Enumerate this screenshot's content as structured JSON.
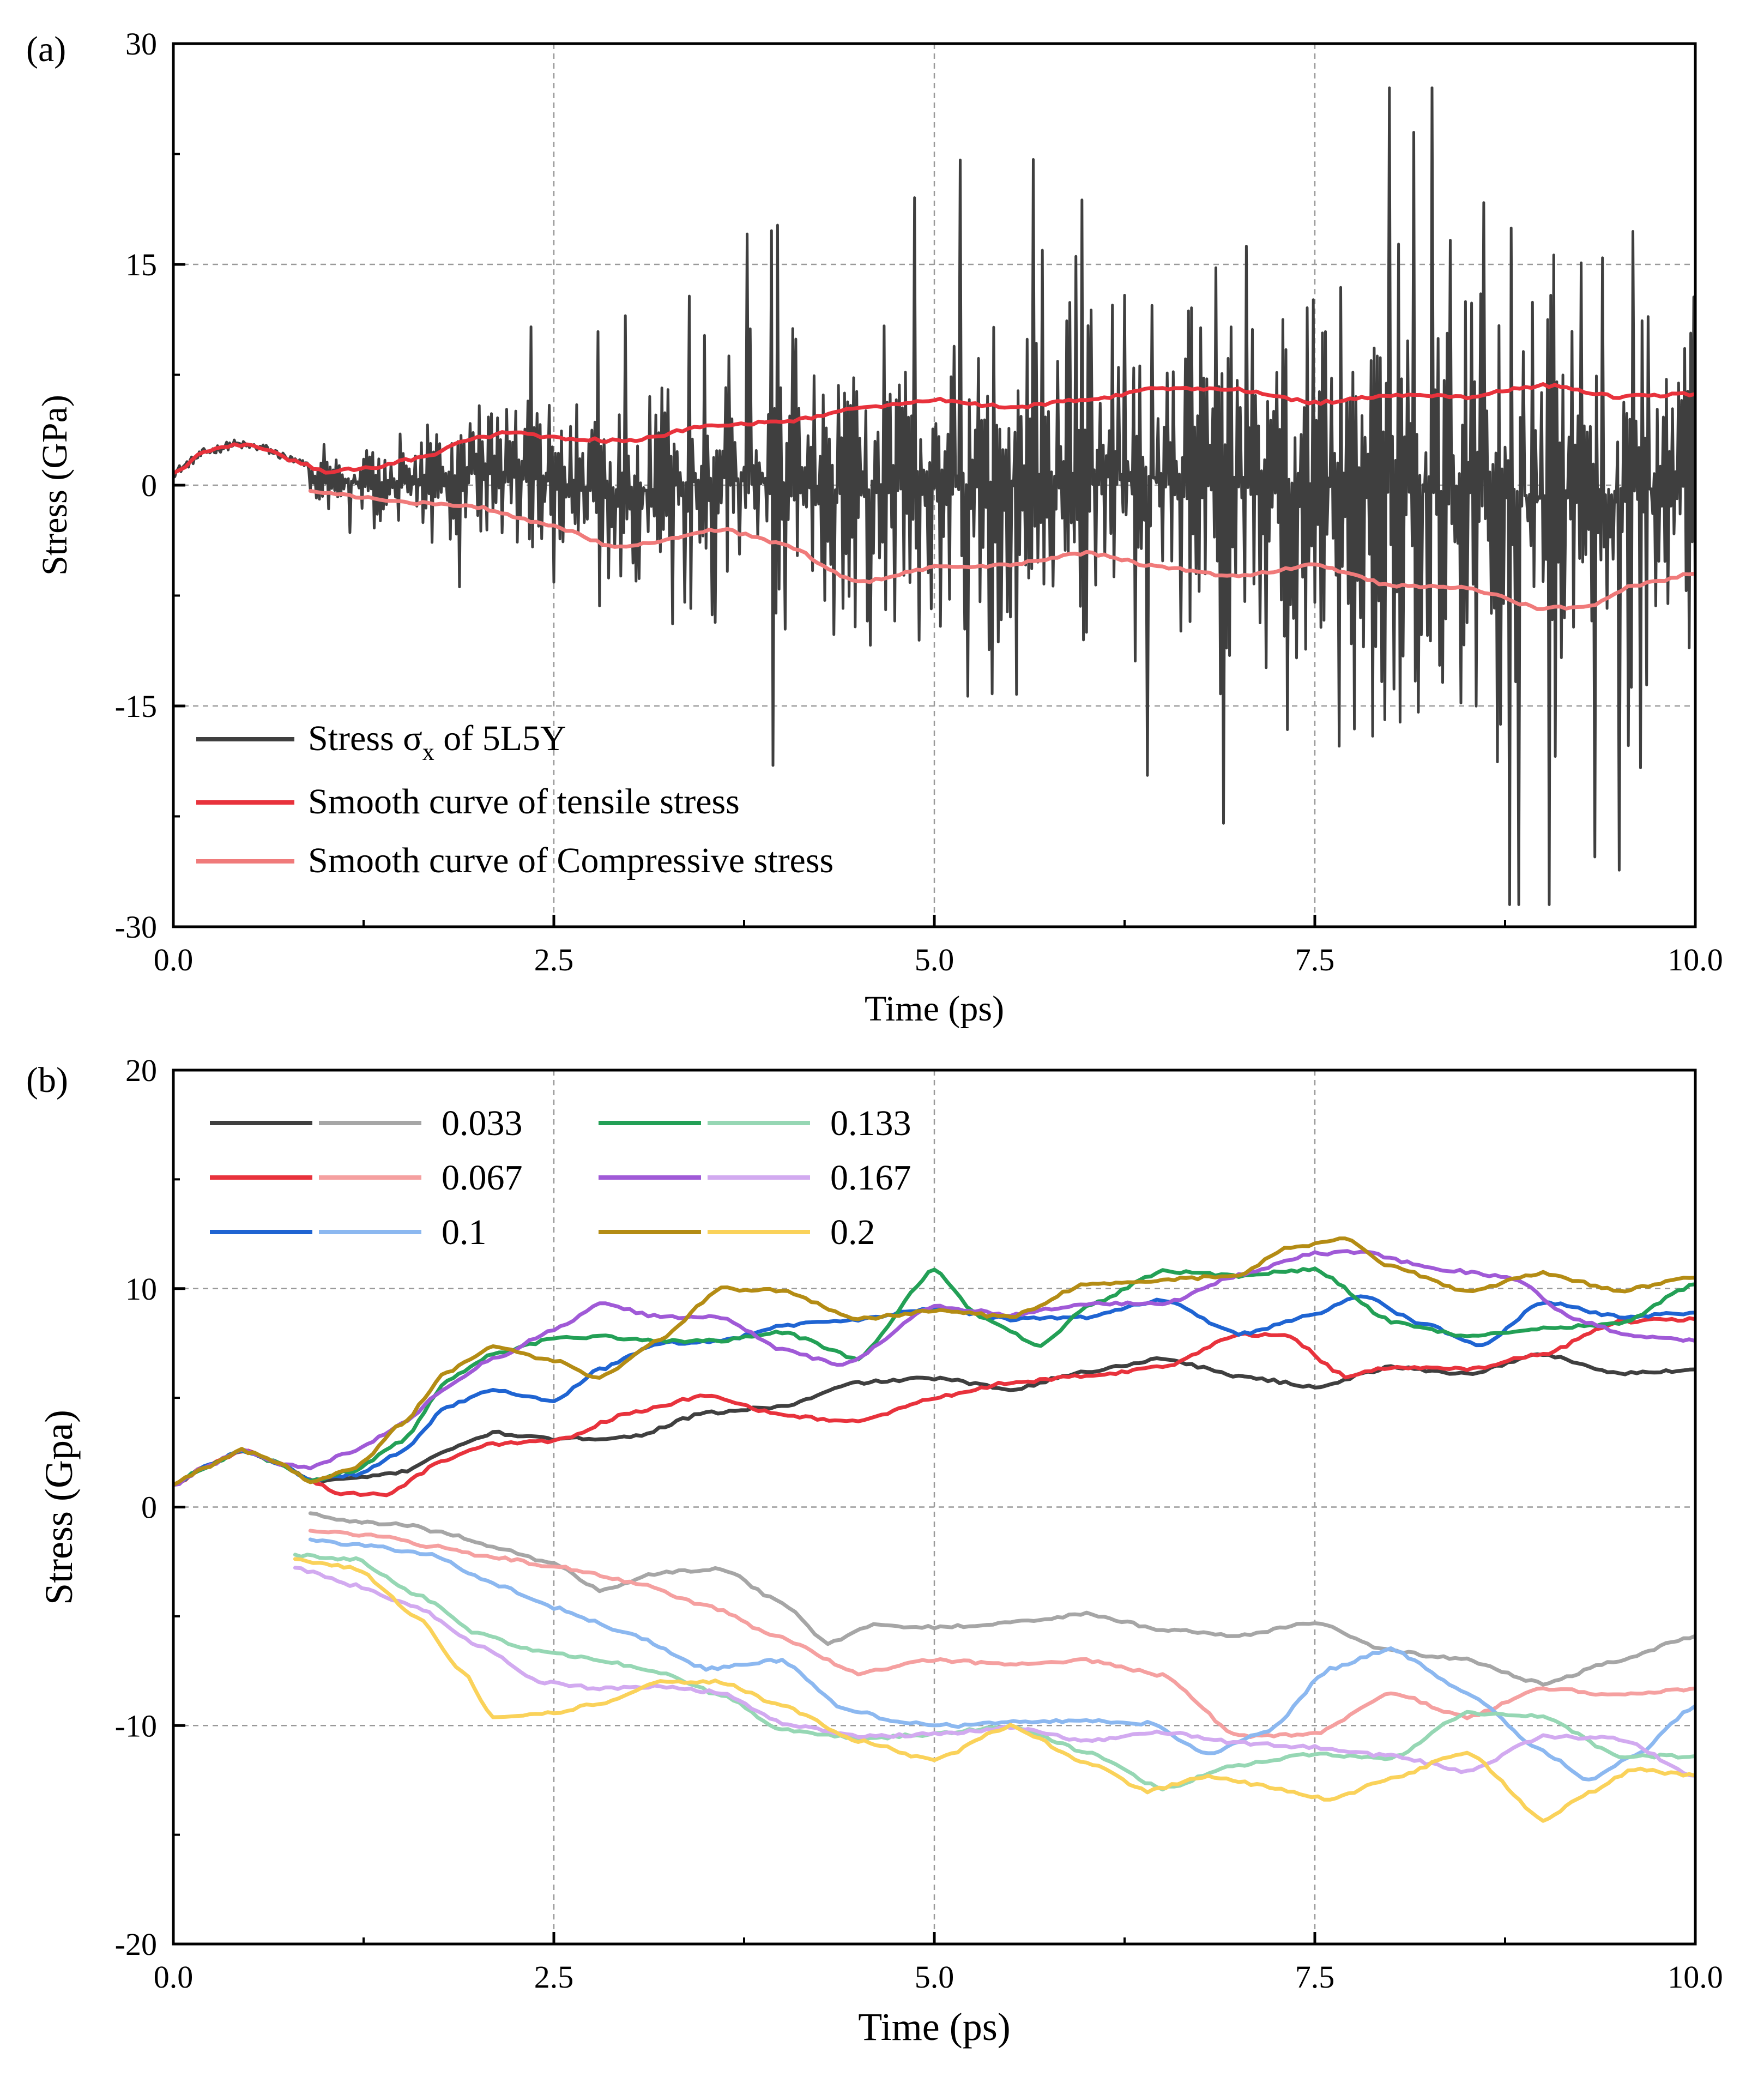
{
  "chart_data": [
    {
      "panel": "(a)",
      "type": "line",
      "xlabel": "Time (ps)",
      "ylabel": "Stress (GPa)",
      "xlim": [
        0,
        10
      ],
      "ylim": [
        -30,
        30
      ],
      "xticks": [
        0,
        2.5,
        5,
        7.5,
        10
      ],
      "xtick_labels": [
        "0.0",
        "2.5",
        "5.0",
        "7.5",
        "10.0"
      ],
      "yticks": [
        -30,
        -15,
        0,
        15,
        30
      ],
      "ytick_labels": [
        "-30",
        "-15",
        "0",
        "15",
        "30"
      ],
      "grid": true,
      "legend_position": "bottom-left",
      "legend_parts": {
        "raw_prefix": "Stress σ",
        "raw_sub": "x",
        "raw_suffix": " of 5L5Y"
      },
      "series": [
        {
          "name": "Stress σx of 5L5Y",
          "color": "#3f3f3f",
          "kind": "raw",
          "t_start": 0,
          "t_end": 10,
          "dt": 0.01,
          "smooth_below": 0.9,
          "envelope": [
            [
              0,
              2.4
            ],
            [
              1,
              2.0
            ],
            [
              1.3,
              3.5
            ],
            [
              1.8,
              5.5
            ],
            [
              2.5,
              7.5
            ],
            [
              3,
              9
            ],
            [
              3.5,
              11
            ],
            [
              4,
              13
            ],
            [
              4.5,
              16
            ],
            [
              5,
              16
            ],
            [
              6,
              17
            ],
            [
              7,
              19
            ],
            [
              8,
              21
            ],
            [
              9,
              23
            ],
            [
              10,
              20
            ]
          ]
        },
        {
          "name": "Smooth curve of tensile stress",
          "color": "#e8323c",
          "kind": "envelope",
          "x": [
            0,
            0.2,
            0.4,
            0.6,
            0.8,
            1.0,
            1.3,
            1.6,
            2.0,
            2.2,
            2.5,
            3.0,
            3.5,
            4.0,
            4.5,
            5.0,
            5.5,
            6.0,
            6.5,
            7.0,
            7.5,
            8.0,
            8.5,
            9.0,
            9.5,
            10.0
          ],
          "y": [
            0.8,
            2.2,
            2.8,
            2.5,
            1.6,
            0.9,
            1.2,
            1.8,
            3.2,
            3.6,
            3.2,
            3.0,
            4.0,
            4.3,
            5.2,
            5.8,
            5.3,
            5.8,
            6.6,
            6.5,
            5.6,
            6.1,
            6.0,
            6.8,
            6.0,
            6.2
          ]
        },
        {
          "name": "Smooth curve of Compressive stress",
          "color": "#f07a7a",
          "kind": "envelope",
          "x": [
            0.9,
            1.2,
            1.6,
            2.0,
            2.5,
            2.9,
            3.2,
            3.6,
            4.0,
            4.5,
            5.0,
            5.5,
            6.0,
            6.5,
            7.0,
            7.5,
            8.0,
            8.5,
            9.0,
            9.3,
            9.6,
            10.0
          ],
          "y": [
            -0.4,
            -0.8,
            -1.2,
            -1.5,
            -2.8,
            -4.2,
            -3.8,
            -3.0,
            -4.0,
            -6.6,
            -5.6,
            -5.4,
            -4.6,
            -5.6,
            -6.2,
            -5.4,
            -6.8,
            -7.0,
            -8.4,
            -8.2,
            -6.8,
            -6.0
          ]
        }
      ]
    },
    {
      "panel": "(b)",
      "type": "line",
      "xlabel": "Time (ps)",
      "ylabel": "Stress (Gpa)",
      "xlim": [
        0,
        10
      ],
      "ylim": [
        -20,
        20
      ],
      "xticks": [
        0,
        2.5,
        5,
        7.5,
        10
      ],
      "xtick_labels": [
        "0.0",
        "2.5",
        "5.0",
        "7.5",
        "10.0"
      ],
      "yticks": [
        -20,
        -10,
        0,
        10,
        20
      ],
      "ytick_labels": [
        "-20",
        "-10",
        "0",
        "10",
        "20"
      ],
      "grid": true,
      "legend_position": "top-left",
      "legend": [
        {
          "label": "0.033",
          "dark": "#3f3f3f",
          "light": "#a6a6a6"
        },
        {
          "label": "0.067",
          "dark": "#e8323c",
          "light": "#f5a0a0"
        },
        {
          "label": "0.1",
          "dark": "#1f64d2",
          "light": "#8cb8f0"
        },
        {
          "label": "0.133",
          "dark": "#23a056",
          "light": "#96d7b4"
        },
        {
          "label": "0.167",
          "dark": "#a05ad7",
          "light": "#d2aaf0"
        },
        {
          "label": "0.2",
          "dark": "#b48c14",
          "light": "#fad25a"
        }
      ],
      "series": [
        {
          "name": "0.033 tensile",
          "color": "#3f3f3f",
          "x": [
            0,
            0.2,
            0.45,
            0.7,
            0.9,
            1.2,
            1.5,
            1.8,
            2.1,
            2.5,
            3.0,
            3.5,
            4.0,
            4.5,
            5.0,
            5.5,
            6.0,
            6.5,
            7.0,
            7.5,
            8.0,
            8.5,
            9.0,
            9.5,
            10.0
          ],
          "y": [
            1.0,
            1.8,
            2.6,
            2.0,
            1.2,
            1.3,
            1.6,
            2.6,
            3.4,
            3.1,
            3.2,
            4.3,
            4.6,
            5.7,
            5.9,
            5.4,
            6.2,
            6.8,
            6.0,
            5.5,
            6.4,
            6.1,
            7.0,
            6.1,
            6.3
          ]
        },
        {
          "name": "0.067 tensile",
          "color": "#e8323c",
          "x": [
            0,
            0.2,
            0.45,
            0.7,
            0.9,
            1.1,
            1.4,
            1.8,
            2.1,
            2.5,
            3.0,
            3.5,
            4.0,
            4.5,
            5.0,
            5.5,
            6.0,
            6.5,
            7.0,
            7.3,
            7.7,
            8.0,
            8.5,
            9.0,
            9.5,
            10.0
          ],
          "y": [
            1.0,
            1.8,
            2.6,
            2.0,
            1.2,
            0.6,
            0.6,
            2.2,
            2.9,
            3.0,
            4.3,
            5.1,
            4.2,
            3.9,
            5.0,
            5.7,
            6.0,
            6.4,
            7.9,
            7.9,
            6.0,
            6.4,
            6.3,
            7.0,
            8.5,
            8.6
          ]
        },
        {
          "name": "0.1 tensile",
          "color": "#1f64d2",
          "x": [
            0,
            0.2,
            0.45,
            0.7,
            0.9,
            1.2,
            1.5,
            1.8,
            2.1,
            2.5,
            2.8,
            3.2,
            3.6,
            4.0,
            4.5,
            5.0,
            5.5,
            6.0,
            6.5,
            7.0,
            7.5,
            7.8,
            8.2,
            8.6,
            9.0,
            9.5,
            10.0
          ],
          "y": [
            1.0,
            1.8,
            2.6,
            2.0,
            1.2,
            1.5,
            2.5,
            4.6,
            5.4,
            4.8,
            6.3,
            7.5,
            7.6,
            8.3,
            8.6,
            9.1,
            8.6,
            8.7,
            9.5,
            7.9,
            8.8,
            9.7,
            8.4,
            7.4,
            9.4,
            8.7,
            8.9
          ]
        },
        {
          "name": "0.133 tensile",
          "color": "#23a056",
          "x": [
            0,
            0.2,
            0.45,
            0.7,
            0.9,
            1.2,
            1.5,
            1.8,
            2.1,
            2.5,
            2.8,
            3.2,
            3.6,
            4.0,
            4.5,
            5.0,
            5.3,
            5.7,
            6.0,
            6.5,
            7.0,
            7.5,
            8.0,
            8.5,
            9.0,
            9.5,
            10.0
          ],
          "y": [
            1.0,
            1.8,
            2.6,
            2.0,
            1.2,
            1.7,
            3.0,
            5.8,
            7.0,
            7.7,
            7.8,
            7.6,
            7.6,
            8.0,
            6.8,
            10.9,
            8.7,
            7.4,
            9.2,
            10.8,
            10.6,
            10.9,
            8.5,
            7.8,
            8.2,
            8.4,
            10.2
          ]
        },
        {
          "name": "0.167 tensile",
          "color": "#a05ad7",
          "x": [
            0,
            0.2,
            0.45,
            0.7,
            0.9,
            1.2,
            1.5,
            1.8,
            2.1,
            2.5,
            2.8,
            3.2,
            3.6,
            4.0,
            4.4,
            5.0,
            5.5,
            6.0,
            6.5,
            7.0,
            7.5,
            7.8,
            8.3,
            8.8,
            9.2,
            9.6,
            10.0
          ],
          "y": [
            1.0,
            1.8,
            2.6,
            2.0,
            1.8,
            2.6,
            3.8,
            5.5,
            6.8,
            8.1,
            9.3,
            8.7,
            8.7,
            7.2,
            6.5,
            9.2,
            8.8,
            9.3,
            9.3,
            10.6,
            11.6,
            11.7,
            10.9,
            10.5,
            8.6,
            7.8,
            7.6
          ]
        },
        {
          "name": "0.2 tensile",
          "color": "#b48c14",
          "x": [
            0,
            0.2,
            0.45,
            0.7,
            0.9,
            1.2,
            1.5,
            1.8,
            2.1,
            2.5,
            2.8,
            3.2,
            3.6,
            4.0,
            4.5,
            5.0,
            5.5,
            6.0,
            6.5,
            7.0,
            7.3,
            7.7,
            8.0,
            8.5,
            9.0,
            9.5,
            10.0
          ],
          "y": [
            1.0,
            1.8,
            2.6,
            2.0,
            1.2,
            1.8,
            3.8,
            6.2,
            7.3,
            6.7,
            5.9,
            7.7,
            10.0,
            9.9,
            8.6,
            9.0,
            8.7,
            10.2,
            10.4,
            10.6,
            11.8,
            12.3,
            11.0,
            9.9,
            10.7,
            9.9,
            10.5
          ]
        },
        {
          "name": "0.033 compressive",
          "color": "#a6a6a6",
          "x": [
            0.9,
            1.2,
            1.5,
            1.8,
            2.1,
            2.5,
            2.8,
            3.2,
            3.6,
            4.0,
            4.3,
            4.6,
            5.0,
            5.5,
            6.0,
            6.5,
            7.0,
            7.5,
            8.0,
            8.5,
            9.0,
            9.5,
            10.0
          ],
          "y": [
            -0.3,
            -0.7,
            -0.8,
            -1.2,
            -1.8,
            -2.6,
            -3.8,
            -3.0,
            -2.8,
            -4.4,
            -6.2,
            -5.4,
            -5.5,
            -5.3,
            -4.9,
            -5.6,
            -5.9,
            -5.3,
            -6.6,
            -7.0,
            -8.1,
            -7.0,
            -5.9
          ]
        },
        {
          "name": "0.067 compressive",
          "color": "#f5a0a0",
          "x": [
            0.9,
            1.3,
            1.7,
            2.1,
            2.5,
            3.0,
            3.5,
            4.0,
            4.5,
            5.0,
            5.5,
            6.0,
            6.5,
            7.0,
            7.5,
            8.0,
            8.5,
            9.0,
            9.5,
            10.0
          ],
          "y": [
            -1.1,
            -1.3,
            -1.8,
            -2.3,
            -2.7,
            -3.4,
            -4.5,
            -6.0,
            -7.6,
            -7.0,
            -7.2,
            -7.0,
            -7.7,
            -10.5,
            -10.4,
            -8.5,
            -9.6,
            -8.3,
            -8.6,
            -8.3
          ]
        },
        {
          "name": "0.1 compressive",
          "color": "#8cb8f0",
          "x": [
            0.9,
            1.3,
            1.7,
            2.1,
            2.5,
            3.0,
            3.5,
            4.0,
            4.4,
            4.8,
            5.2,
            5.6,
            6.0,
            6.4,
            6.8,
            7.2,
            7.6,
            8.0,
            8.5,
            9.0,
            9.3,
            9.6,
            10.0
          ],
          "y": [
            -1.5,
            -1.8,
            -2.2,
            -3.5,
            -4.6,
            -5.8,
            -7.4,
            -7.0,
            -9.2,
            -9.9,
            -10.0,
            -9.8,
            -9.8,
            -9.9,
            -11.3,
            -10.2,
            -7.4,
            -6.5,
            -8.5,
            -11.2,
            -12.5,
            -11.4,
            -9.1
          ]
        },
        {
          "name": "0.133 compressive",
          "color": "#96d7b4",
          "x": [
            0.8,
            1.2,
            1.6,
            2.0,
            2.4,
            2.8,
            3.2,
            3.6,
            4.0,
            4.5,
            5.0,
            5.5,
            6.0,
            6.5,
            7.0,
            7.5,
            8.0,
            8.5,
            9.0,
            9.5,
            10.0
          ],
          "y": [
            -2.2,
            -2.4,
            -4.0,
            -5.8,
            -6.6,
            -7.0,
            -7.6,
            -8.6,
            -10.2,
            -10.6,
            -10.4,
            -10.0,
            -11.2,
            -12.9,
            -11.8,
            -11.3,
            -11.5,
            -9.4,
            -9.6,
            -11.4,
            -11.4
          ]
        },
        {
          "name": "0.167 compressive",
          "color": "#d2aaf0",
          "x": [
            0.8,
            1.2,
            1.6,
            2.0,
            2.4,
            2.8,
            3.2,
            3.6,
            4.0,
            4.5,
            5.0,
            5.5,
            6.0,
            6.5,
            7.0,
            7.5,
            8.0,
            8.5,
            9.0,
            9.5,
            10.0
          ],
          "y": [
            -2.8,
            -3.6,
            -4.6,
            -6.3,
            -8.0,
            -8.3,
            -8.2,
            -8.5,
            -9.9,
            -10.5,
            -10.4,
            -10.1,
            -10.7,
            -10.3,
            -10.8,
            -11.0,
            -11.4,
            -12.1,
            -10.5,
            -10.6,
            -12.3
          ]
        },
        {
          "name": "0.2 compressive",
          "color": "#fad25a",
          "x": [
            0.8,
            1.2,
            1.6,
            1.9,
            2.1,
            2.5,
            2.8,
            3.2,
            3.6,
            4.0,
            4.5,
            5.0,
            5.5,
            6.0,
            6.4,
            6.8,
            7.2,
            7.6,
            8.0,
            8.5,
            9.0,
            9.3,
            9.6,
            10.0
          ],
          "y": [
            -2.4,
            -2.8,
            -5.0,
            -7.5,
            -9.6,
            -9.4,
            -9.0,
            -8.0,
            -8.0,
            -9.1,
            -10.7,
            -11.6,
            -10.0,
            -11.7,
            -13.0,
            -12.3,
            -12.8,
            -13.4,
            -12.4,
            -11.2,
            -14.3,
            -13.1,
            -12.0,
            -12.3
          ]
        }
      ]
    }
  ]
}
